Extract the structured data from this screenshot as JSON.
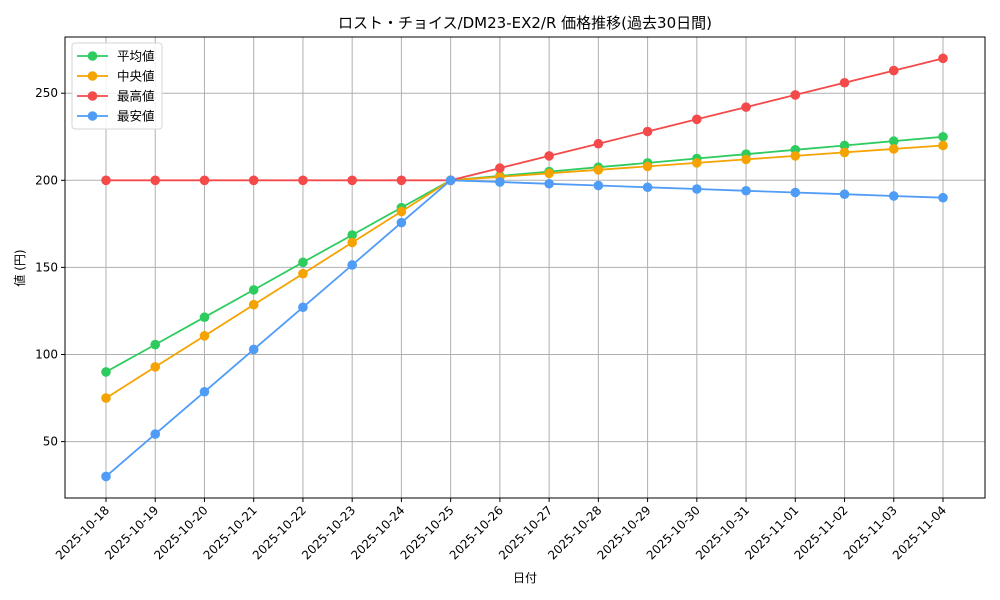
{
  "chart_data": {
    "type": "line",
    "title": "ロスト・チョイス/DM23-EX2/R 価格推移(過去30日間)",
    "xlabel": "日付",
    "ylabel": "値 (円)",
    "categories": [
      "2025-10-18",
      "2025-10-19",
      "2025-10-20",
      "2025-10-21",
      "2025-10-22",
      "2025-10-23",
      "2025-10-24",
      "2025-10-25",
      "2025-10-26",
      "2025-10-27",
      "2025-10-28",
      "2025-10-29",
      "2025-10-30",
      "2025-10-31",
      "2025-11-01",
      "2025-11-02",
      "2025-11-03",
      "2025-11-04"
    ],
    "series": [
      {
        "name": "平均値",
        "color": "#2ecc5f",
        "values": [
          90,
          105.7,
          121.4,
          137.1,
          152.9,
          168.6,
          184.3,
          200,
          202.5,
          205,
          207.5,
          210,
          212.5,
          215,
          217.5,
          220,
          222.5,
          225
        ]
      },
      {
        "name": "中央値",
        "color": "#f5a300",
        "values": [
          75,
          92.9,
          110.7,
          128.6,
          146.4,
          164.3,
          182.1,
          200,
          202,
          204,
          206,
          208,
          210,
          212,
          214,
          216,
          218,
          220
        ]
      },
      {
        "name": "最高値",
        "color": "#f54a4a",
        "values": [
          200,
          200,
          200,
          200,
          200,
          200,
          200,
          200,
          207,
          214,
          221,
          228,
          235,
          242,
          249,
          256,
          263,
          270
        ]
      },
      {
        "name": "最安値",
        "color": "#4f9cf7",
        "values": [
          30,
          54.3,
          78.6,
          102.9,
          127.1,
          151.4,
          175.7,
          200,
          199,
          198,
          197,
          196,
          195,
          194,
          193,
          192,
          191,
          190
        ]
      }
    ],
    "yticks": [
      50,
      100,
      150,
      200,
      250
    ],
    "ylim": [
      17,
      280
    ],
    "grid": true,
    "legend_position": "upper left"
  }
}
